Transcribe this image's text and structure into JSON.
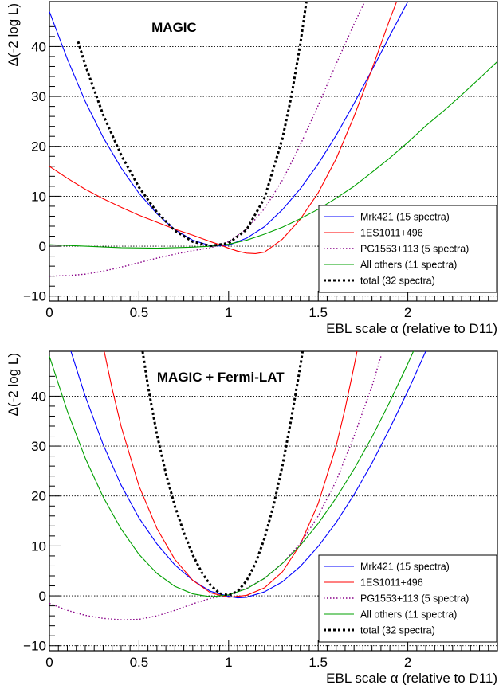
{
  "chart_data": [
    {
      "type": "line",
      "title": "MAGIC",
      "xlabel": "EBL scale α (relative to D11)",
      "ylabel": "Δ(-2 log L)",
      "xlim": [
        0,
        2.5
      ],
      "ylim": [
        -11,
        49
      ],
      "xticks": [
        0,
        0.5,
        1,
        1.5,
        2
      ],
      "xtick_labels": [
        "0",
        "0.5",
        "1",
        "1.5",
        "2"
      ],
      "yticks": [
        -10,
        0,
        10,
        20,
        30,
        40
      ],
      "ytick_labels": [
        "−10",
        "0",
        "10",
        "20",
        "30",
        "40"
      ],
      "grid": "horizontal dotted",
      "legend_position": "bottom-right",
      "series": [
        {
          "name": "Mrk421 (15 spectra)",
          "color": "#0000ff",
          "dash": "solid",
          "x": [
            0,
            0.1,
            0.2,
            0.3,
            0.4,
            0.5,
            0.6,
            0.7,
            0.8,
            0.9,
            0.95,
            1.0,
            1.1,
            1.2,
            1.3,
            1.4,
            1.5,
            1.6,
            1.7,
            1.8,
            1.9,
            2.0,
            2.08
          ],
          "y": [
            47,
            37.5,
            29,
            21.8,
            15.7,
            10.6,
            6.5,
            3.3,
            1.2,
            0.08,
            0.05,
            0.2,
            1.6,
            3.9,
            7.3,
            11.5,
            16.5,
            22.2,
            28.6,
            35.3,
            42.2,
            49,
            55
          ]
        },
        {
          "name": "1ES1011+496",
          "color": "#ff0000",
          "dash": "solid",
          "x": [
            0,
            0.1,
            0.2,
            0.3,
            0.4,
            0.5,
            0.6,
            0.7,
            0.8,
            0.9,
            0.95,
            1.0,
            1.05,
            1.1,
            1.15,
            1.2,
            1.3,
            1.4,
            1.5,
            1.6,
            1.7,
            1.8,
            1.9,
            1.97
          ],
          "y": [
            16,
            13.6,
            11.4,
            9.5,
            7.8,
            6.2,
            4.8,
            3.4,
            2.2,
            0.9,
            0.3,
            -0.4,
            -1.0,
            -1.4,
            -1.5,
            -1.2,
            1.4,
            5.4,
            10.7,
            17.5,
            26,
            35.5,
            45.5,
            52
          ]
        },
        {
          "name": "PG1553+113 (5 spectra)",
          "color": "#880088",
          "dash": "dotted",
          "x": [
            0,
            0.1,
            0.2,
            0.3,
            0.4,
            0.5,
            0.6,
            0.7,
            0.8,
            0.9,
            1.0,
            1.1,
            1.2,
            1.3,
            1.4,
            1.5,
            1.6,
            1.7,
            1.8,
            1.86
          ],
          "y": [
            -6,
            -5.9,
            -5.6,
            -5.0,
            -4.2,
            -3.3,
            -2.4,
            -1.6,
            -0.9,
            -0.3,
            0.9,
            3.4,
            7.5,
            13.2,
            20.3,
            28.2,
            36.5,
            44.5,
            52,
            56
          ]
        },
        {
          "name": "All others (11 spectra)",
          "color": "#00a000",
          "dash": "solid",
          "x": [
            0,
            0.2,
            0.4,
            0.6,
            0.8,
            0.9,
            1.0,
            1.1,
            1.2,
            1.3,
            1.4,
            1.5,
            1.6,
            1.7,
            1.8,
            1.9,
            2.0,
            2.1,
            2.2,
            2.3,
            2.4,
            2.5
          ],
          "y": [
            0.3,
            0.0,
            -0.3,
            -0.4,
            -0.2,
            0.0,
            0.4,
            1.2,
            2.4,
            3.8,
            5.5,
            7.4,
            9.6,
            12,
            14.8,
            17.7,
            20.8,
            24.1,
            27.1,
            30.3,
            33.6,
            37
          ]
        },
        {
          "name": "total (32 spectra)",
          "color": "#000000",
          "dash": "bold-dotted",
          "x": [
            0.16,
            0.2,
            0.3,
            0.4,
            0.5,
            0.6,
            0.7,
            0.8,
            0.9,
            1.0,
            1.1,
            1.2,
            1.3,
            1.35,
            1.4,
            1.45
          ],
          "y": [
            41,
            36.3,
            26.3,
            18.3,
            11.8,
            6.8,
            3.1,
            0.9,
            0.05,
            0.6,
            3.3,
            9.6,
            21.5,
            30,
            40.5,
            53
          ]
        }
      ]
    },
    {
      "type": "line",
      "title": "MAGIC + Fermi-LAT",
      "xlabel": "EBL scale α (relative to D11)",
      "ylabel": "Δ(-2 log L)",
      "xlim": [
        0,
        2.5
      ],
      "ylim": [
        -11,
        49
      ],
      "xticks": [
        0,
        0.5,
        1,
        1.5,
        2
      ],
      "xtick_labels": [
        "0",
        "0.5",
        "1",
        "1.5",
        "2"
      ],
      "yticks": [
        -10,
        0,
        10,
        20,
        30,
        40
      ],
      "ytick_labels": [
        "−10",
        "0",
        "10",
        "20",
        "30",
        "40"
      ],
      "grid": "horizontal dotted",
      "legend_position": "bottom-right",
      "series": [
        {
          "name": "Mrk421 (15 spectra)",
          "color": "#0000ff",
          "dash": "solid",
          "x": [
            0.12,
            0.2,
            0.3,
            0.4,
            0.5,
            0.6,
            0.7,
            0.8,
            0.9,
            1.0,
            1.05,
            1.1,
            1.2,
            1.3,
            1.4,
            1.5,
            1.6,
            1.7,
            1.8,
            1.9,
            2.0,
            2.1,
            2.15
          ],
          "y": [
            49,
            40,
            30.3,
            22.2,
            15.6,
            10.4,
            6.2,
            3.1,
            0.9,
            -0.1,
            -0.4,
            -0.3,
            0.8,
            2.8,
            5.9,
            9.9,
            14.7,
            20.3,
            26.6,
            33.6,
            41,
            49,
            53
          ]
        },
        {
          "name": "1ES1011+496",
          "color": "#ff0000",
          "dash": "solid",
          "x": [
            0.3,
            0.35,
            0.4,
            0.5,
            0.6,
            0.7,
            0.8,
            0.9,
            1.0,
            1.1,
            1.2,
            1.3,
            1.4,
            1.5,
            1.6,
            1.65,
            1.7,
            1.75
          ],
          "y": [
            50,
            41.5,
            34,
            22,
            13.5,
            7.3,
            3.1,
            0.6,
            -0.3,
            0.1,
            1.6,
            4.8,
            10.3,
            18.5,
            30,
            37.5,
            46,
            55
          ]
        },
        {
          "name": "PG1553+113 (5 spectra)",
          "color": "#880088",
          "dash": "dotted",
          "x": [
            0,
            0.1,
            0.2,
            0.3,
            0.4,
            0.5,
            0.6,
            0.7,
            0.8,
            0.9,
            1.0,
            1.1,
            1.2,
            1.3,
            1.4,
            1.5,
            1.6,
            1.7,
            1.8,
            1.85
          ],
          "y": [
            -1.5,
            -2.9,
            -3.9,
            -4.5,
            -4.8,
            -4.7,
            -4.0,
            -2.9,
            -1.6,
            -0.5,
            0.2,
            1.5,
            3.5,
            6.5,
            10.5,
            16,
            23,
            32,
            42,
            48
          ]
        },
        {
          "name": "All others (11 spectra)",
          "color": "#00a000",
          "dash": "solid",
          "x": [
            0,
            0.1,
            0.2,
            0.3,
            0.4,
            0.5,
            0.6,
            0.7,
            0.8,
            0.9,
            1.0,
            1.1,
            1.2,
            1.3,
            1.4,
            1.5,
            1.6,
            1.7,
            1.8,
            1.9,
            2.0,
            2.05
          ],
          "y": [
            48,
            37,
            27.6,
            19.8,
            13.4,
            8.3,
            4.5,
            1.9,
            0.4,
            -0.2,
            0.2,
            1.4,
            3.5,
            6.5,
            10.1,
            14.5,
            19.6,
            25.4,
            31.8,
            38.9,
            46.5,
            50.5
          ]
        },
        {
          "name": "total (32 spectra)",
          "color": "#000000",
          "dash": "bold-dotted",
          "x": [
            0.52,
            0.55,
            0.6,
            0.65,
            0.7,
            0.75,
            0.8,
            0.85,
            0.9,
            0.95,
            1.0,
            1.05,
            1.1,
            1.15,
            1.2,
            1.25,
            1.3,
            1.35,
            1.4,
            1.43
          ],
          "y": [
            49,
            42,
            32.3,
            24.5,
            18,
            12.7,
            8.2,
            4.7,
            2.1,
            0.5,
            0.1,
            0.9,
            3.0,
            6.5,
            11.5,
            18,
            26,
            35.5,
            46,
            53
          ]
        }
      ]
    }
  ]
}
